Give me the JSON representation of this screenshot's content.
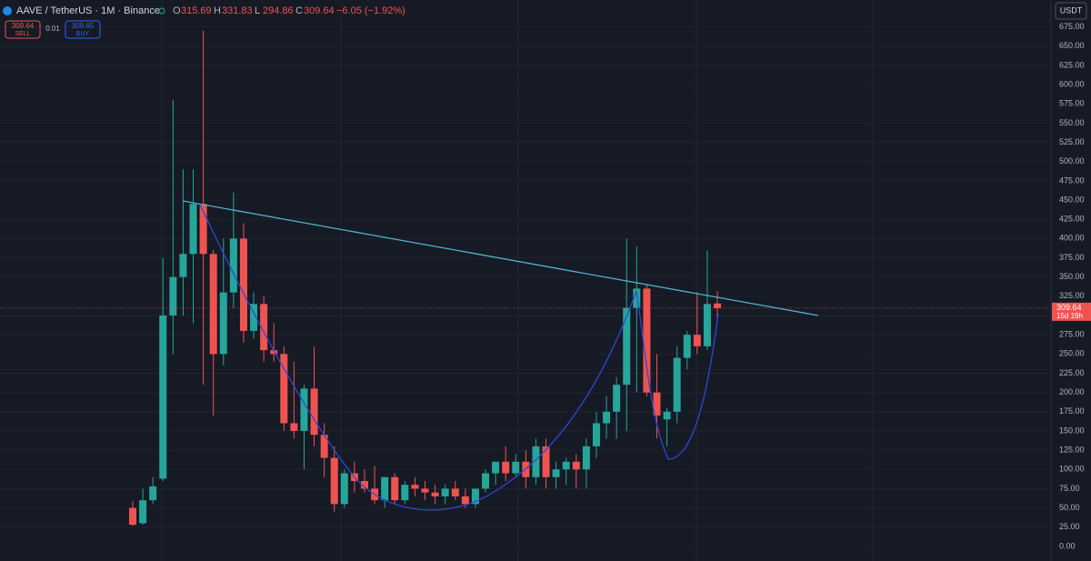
{
  "header": {
    "symbol": "AAVE / TetherUS · 1M · Binance",
    "ohlc": [
      {
        "label": "O",
        "value": "315.69"
      },
      {
        "label": "H",
        "value": "331.83"
      },
      {
        "label": "L",
        "value": "294.86"
      },
      {
        "label": "C",
        "value": "309.64"
      }
    ],
    "change": "−6.05 (−1.92%)",
    "sell_price": "309.64",
    "sell": "SELL",
    "qty": "0.01",
    "buy_price": "309.65",
    "buy": "BUY",
    "currency": "USDT"
  },
  "chart_data": {
    "type": "candlestick",
    "up_color": "#26a69a",
    "down_color": "#ef5350",
    "grid": true,
    "last_price": 309.64,
    "countdown": "15d 19h",
    "series": {
      "open": [
        50,
        30,
        60,
        88,
        300,
        350,
        380,
        445,
        380,
        250,
        330,
        400,
        280,
        315,
        255,
        250,
        160,
        150,
        205,
        145,
        115,
        55,
        95,
        85,
        75,
        60,
        90,
        60,
        80,
        75,
        70,
        65,
        75,
        65,
        55,
        75,
        95,
        110,
        95,
        110,
        90,
        130,
        90,
        100,
        110,
        100,
        130,
        160,
        175,
        210,
        310,
        335,
        200,
        165,
        175,
        245,
        275,
        260,
        315.69
      ],
      "high": [
        59,
        75,
        90,
        375,
        580,
        490,
        490,
        670,
        385,
        400,
        460,
        420,
        330,
        325,
        290,
        260,
        240,
        210,
        260,
        160,
        130,
        100,
        110,
        100,
        105,
        90,
        95,
        85,
        90,
        85,
        80,
        80,
        85,
        75,
        75,
        100,
        110,
        130,
        120,
        125,
        140,
        140,
        110,
        115,
        120,
        140,
        175,
        195,
        220,
        400,
        390,
        340,
        250,
        180,
        260,
        280,
        330,
        385,
        331.83
      ],
      "low": [
        27,
        28,
        55,
        85,
        250,
        300,
        290,
        210,
        170,
        235,
        310,
        265,
        270,
        240,
        240,
        150,
        140,
        100,
        130,
        90,
        45,
        50,
        70,
        70,
        55,
        50,
        55,
        55,
        65,
        60,
        55,
        55,
        60,
        50,
        50,
        70,
        80,
        85,
        90,
        75,
        80,
        75,
        75,
        80,
        75,
        75,
        115,
        140,
        140,
        150,
        200,
        195,
        140,
        130,
        160,
        230,
        250,
        255,
        294.86
      ],
      "close": [
        28,
        60,
        78,
        300,
        350,
        380,
        445,
        380,
        250,
        330,
        400,
        280,
        315,
        255,
        250,
        160,
        150,
        205,
        145,
        115,
        55,
        95,
        85,
        75,
        60,
        90,
        60,
        80,
        75,
        70,
        65,
        75,
        65,
        55,
        75,
        95,
        110,
        95,
        110,
        90,
        130,
        90,
        100,
        110,
        100,
        130,
        160,
        175,
        210,
        310,
        335,
        200,
        170,
        175,
        245,
        275,
        260,
        315,
        309.64
      ]
    },
    "ylim": [
      -19,
      710
    ],
    "yticks": [
      {
        "value": 0,
        "label": "0.00"
      },
      {
        "value": 25,
        "label": "25.00"
      },
      {
        "value": 50,
        "label": "50.00"
      },
      {
        "value": 75,
        "label": "75.00"
      },
      {
        "value": 100,
        "label": "100.00"
      },
      {
        "value": 125,
        "label": "125.00"
      },
      {
        "value": 150,
        "label": "150.00"
      },
      {
        "value": 175,
        "label": "175.00"
      },
      {
        "value": 200,
        "label": "200.00"
      },
      {
        "value": 225,
        "label": "225.00"
      },
      {
        "value": 250,
        "label": "250.00"
      },
      {
        "value": 275,
        "label": "275.00"
      },
      {
        "value": 300,
        "label": "300.00"
      },
      {
        "value": 325,
        "label": "325.00"
      },
      {
        "value": 350,
        "label": "350.00"
      },
      {
        "value": 375,
        "label": "375.00"
      },
      {
        "value": 400,
        "label": "400.00"
      },
      {
        "value": 425,
        "label": "425.00"
      },
      {
        "value": 450,
        "label": "450.00"
      },
      {
        "value": 475,
        "label": "475.00"
      },
      {
        "value": 500,
        "label": "500.00"
      },
      {
        "value": 525,
        "label": "525.00"
      },
      {
        "value": 550,
        "label": "550.00"
      },
      {
        "value": 575,
        "label": "575.00"
      },
      {
        "value": 600,
        "label": "600.00"
      },
      {
        "value": 625,
        "label": "625.00"
      },
      {
        "value": 650,
        "label": "650.00"
      },
      {
        "value": 675,
        "label": "675.00"
      }
    ]
  }
}
